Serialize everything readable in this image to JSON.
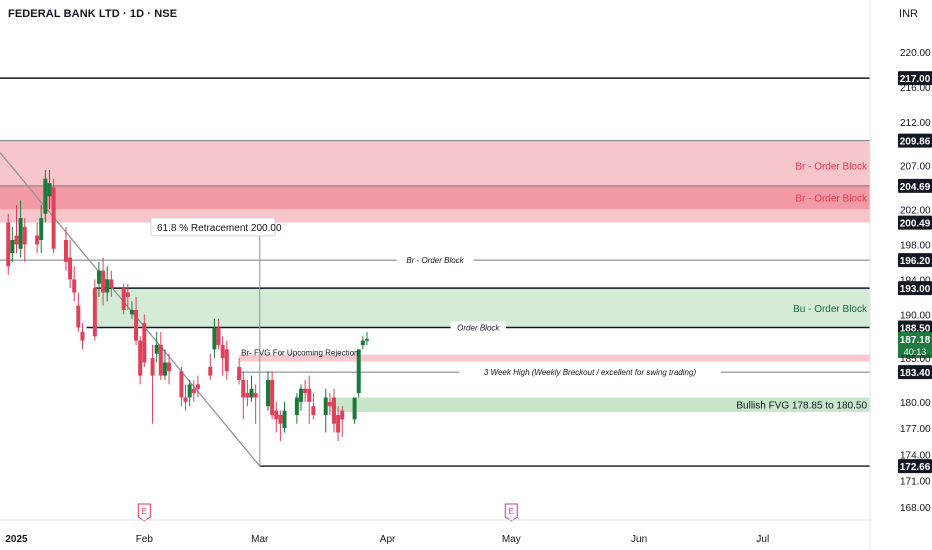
{
  "header": {
    "title": "FEDERAL BANK LTD · 1D · NSE",
    "currency": "INR"
  },
  "chart_data": {
    "type": "candlestick",
    "title": "FEDERAL BANK LTD · 1D · NSE",
    "currency": "INR",
    "ylim": [
      166.5,
      222.5
    ],
    "y_ticks": [
      "220.00",
      "216.00",
      "212.00",
      "207.00",
      "202.00",
      "198.00",
      "194.00",
      "190.00",
      "185.00",
      "180.00",
      "177.00",
      "174.00",
      "171.00",
      "168.00"
    ],
    "x_ticks": [
      "2025",
      "Feb",
      "Mar",
      "Apr",
      "May",
      "Jun",
      "Jul"
    ],
    "x_tick_dates": [
      "2025-01-01",
      "2025-02-01",
      "2025-03-01",
      "2025-04-01",
      "2025-05-01",
      "2025-06-01",
      "2025-07-01"
    ],
    "xlim": [
      "2024-12-28",
      "2025-07-27"
    ],
    "price_labels": [
      {
        "text": "217.00",
        "value": 217.0,
        "style": "black"
      },
      {
        "text": "209.86",
        "value": 209.86,
        "style": "black"
      },
      {
        "text": "204.69",
        "value": 204.69,
        "style": "black"
      },
      {
        "text": "200.49",
        "value": 200.49,
        "style": "black"
      },
      {
        "text": "196.20",
        "value": 196.2,
        "style": "black"
      },
      {
        "text": "193.00",
        "value": 193.0,
        "style": "black"
      },
      {
        "text": "188.50",
        "value": 188.5,
        "style": "black"
      },
      {
        "text": "187.18",
        "value": 187.18,
        "style": "green",
        "sub": "40:13"
      },
      {
        "text": "183.40",
        "value": 183.4,
        "style": "black"
      },
      {
        "text": "172.66",
        "value": 172.66,
        "style": "black"
      }
    ],
    "zones": [
      {
        "label": "Br - Order Block",
        "top": 209.86,
        "bottom": 200.49,
        "color": "#f7c6cb",
        "label_color": "#e53950"
      },
      {
        "label": "Br - Order Block",
        "top": 204.69,
        "bottom": 202.0,
        "color": "#f29ba7",
        "label_color": "#e53950"
      },
      {
        "label": "Bu - Order Block",
        "top": 193.0,
        "bottom": 188.5,
        "color": "#d4ecd6",
        "label_color": "#1a6b3a",
        "from": "2025-01-20"
      },
      {
        "label": "Br- FVG For Upcoming Rejection",
        "top": 185.4,
        "bottom": 184.6,
        "color": "#f8c9cf",
        "label_color": "#131722",
        "from": "2025-02-24"
      },
      {
        "label": "Bullish FVG 178.85 to 180.50",
        "top": 180.5,
        "bottom": 178.85,
        "color": "#c8e6c9",
        "label_color": "#131722",
        "from": "2025-03-18"
      }
    ],
    "hlines": [
      {
        "value": 217.0,
        "label": "",
        "style": "solid"
      },
      {
        "value": 209.86,
        "label": "",
        "style": "grey"
      },
      {
        "value": 204.69,
        "label": "",
        "style": "grey"
      },
      {
        "value": 196.2,
        "label": "Br - Order Block",
        "from": "2024-12-28"
      },
      {
        "value": 193.0,
        "label": "",
        "from": "2025-01-20",
        "style": "solid"
      },
      {
        "value": 188.5,
        "label": "Order Block",
        "from": "2025-01-18",
        "style": "solid"
      },
      {
        "value": 183.4,
        "label": "3 Week High (Weekly Breckout / excellent for swing trading)",
        "from": "2025-02-24"
      },
      {
        "value": 172.66,
        "label": "",
        "from": "2025-03-01",
        "style": "solid"
      }
    ],
    "annotation": {
      "text": "61.8 % Retracement  200.00",
      "value": 200.0
    },
    "events": [
      {
        "date": "2025-02-01",
        "mark": "E",
        "color": "#e53950"
      },
      {
        "date": "2025-05-01",
        "mark": "E",
        "color": "#c330c3"
      }
    ],
    "candles": [
      {
        "d": "2024-12-30",
        "o": 200.5,
        "h": 201.5,
        "c": 195.5,
        "l": 194.5
      },
      {
        "d": "2024-12-31",
        "o": 197.0,
        "h": 200.0,
        "c": 198.5,
        "l": 196.0
      },
      {
        "d": "2025-01-01",
        "o": 199.0,
        "h": 202.5,
        "c": 198.0,
        "l": 197.0
      },
      {
        "d": "2025-01-02",
        "o": 197.5,
        "h": 203.0,
        "c": 201.0,
        "l": 196.5
      },
      {
        "d": "2025-01-03",
        "o": 200.0,
        "h": 201.0,
        "c": 198.0,
        "l": 196.0
      },
      {
        "d": "2025-01-06",
        "o": 199.0,
        "h": 200.5,
        "c": 198.0,
        "l": 197.0
      },
      {
        "d": "2025-01-07",
        "o": 198.5,
        "h": 202.5,
        "c": 201.0,
        "l": 197.0
      },
      {
        "d": "2025-01-08",
        "o": 201.5,
        "h": 206.5,
        "c": 205.5,
        "l": 200.5
      },
      {
        "d": "2025-01-09",
        "o": 203.5,
        "h": 206.5,
        "c": 205.0,
        "l": 202.0
      },
      {
        "d": "2025-01-10",
        "o": 204.5,
        "h": 205.5,
        "c": 197.5,
        "l": 197.0
      },
      {
        "d": "2025-01-13",
        "o": 198.5,
        "h": 200.0,
        "c": 196.0,
        "l": 195.0
      },
      {
        "d": "2025-01-14",
        "o": 196.5,
        "h": 198.5,
        "c": 194.0,
        "l": 193.0
      },
      {
        "d": "2025-01-15",
        "o": 194.0,
        "h": 195.5,
        "c": 192.5,
        "l": 191.5
      },
      {
        "d": "2025-01-16",
        "o": 191.0,
        "h": 192.5,
        "c": 188.5,
        "l": 188.0
      },
      {
        "d": "2025-01-17",
        "o": 188.0,
        "h": 189.0,
        "c": 187.0,
        "l": 186.0
      },
      {
        "d": "2025-01-20",
        "o": 193.0,
        "h": 194.0,
        "c": 187.5,
        "l": 187.0
      },
      {
        "d": "2025-01-21",
        "o": 193.5,
        "h": 196.0,
        "c": 195.0,
        "l": 192.0
      },
      {
        "d": "2025-01-22",
        "o": 195.0,
        "h": 196.5,
        "c": 192.5,
        "l": 191.0
      },
      {
        "d": "2025-01-23",
        "o": 192.5,
        "h": 195.5,
        "c": 194.0,
        "l": 191.5
      },
      {
        "d": "2025-01-24",
        "o": 194.0,
        "h": 195.0,
        "c": 193.0,
        "l": 192.0
      },
      {
        "d": "2025-01-27",
        "o": 193.0,
        "h": 193.5,
        "c": 190.5,
        "l": 190.0
      },
      {
        "d": "2025-01-28",
        "o": 192.5,
        "h": 193.5,
        "c": 192.0,
        "l": 190.5
      },
      {
        "d": "2025-01-29",
        "o": 190.0,
        "h": 191.5,
        "c": 190.5,
        "l": 189.5
      },
      {
        "d": "2025-01-30",
        "o": 190.5,
        "h": 192.0,
        "c": 187.0,
        "l": 186.5
      },
      {
        "d": "2025-01-31",
        "o": 187.0,
        "h": 187.5,
        "c": 183.0,
        "l": 182.0
      },
      {
        "d": "2025-02-01",
        "o": 189.0,
        "h": 190.0,
        "c": 184.5,
        "l": 184.0
      },
      {
        "d": "2025-02-03",
        "o": 185.0,
        "h": 186.5,
        "c": 183.0,
        "l": 177.5
      },
      {
        "d": "2025-02-04",
        "o": 185.5,
        "h": 188.0,
        "c": 186.5,
        "l": 184.5
      },
      {
        "d": "2025-02-05",
        "o": 186.5,
        "h": 188.0,
        "c": 183.0,
        "l": 182.5
      },
      {
        "d": "2025-02-06",
        "o": 183.0,
        "h": 186.0,
        "c": 184.5,
        "l": 182.5
      },
      {
        "d": "2025-02-07",
        "o": 184.5,
        "h": 185.5,
        "c": 183.5,
        "l": 182.0
      },
      {
        "d": "2025-02-10",
        "o": 183.5,
        "h": 184.0,
        "c": 180.5,
        "l": 179.5
      },
      {
        "d": "2025-02-11",
        "o": 180.5,
        "h": 182.0,
        "c": 180.0,
        "l": 179.0
      },
      {
        "d": "2025-02-12",
        "o": 180.5,
        "h": 182.5,
        "c": 182.0,
        "l": 179.5
      },
      {
        "d": "2025-02-13",
        "o": 181.5,
        "h": 182.5,
        "c": 181.0,
        "l": 180.0
      },
      {
        "d": "2025-02-14",
        "o": 182.0,
        "h": 183.0,
        "c": 181.5,
        "l": 180.5
      },
      {
        "d": "2025-02-17",
        "o": 184.0,
        "h": 185.5,
        "c": 183.0,
        "l": 182.5
      },
      {
        "d": "2025-02-18",
        "o": 186.0,
        "h": 189.5,
        "c": 188.5,
        "l": 185.0
      },
      {
        "d": "2025-02-19",
        "o": 188.5,
        "h": 189.5,
        "c": 186.5,
        "l": 186.0
      },
      {
        "d": "2025-02-20",
        "o": 186.5,
        "h": 187.5,
        "c": 185.0,
        "l": 183.0
      },
      {
        "d": "2025-02-21",
        "o": 186.0,
        "h": 187.0,
        "c": 183.5,
        "l": 182.5
      },
      {
        "d": "2025-02-24",
        "o": 184.0,
        "h": 185.0,
        "c": 182.5,
        "l": 182.0
      },
      {
        "d": "2025-02-25",
        "o": 182.5,
        "h": 183.5,
        "c": 180.5,
        "l": 178.0
      },
      {
        "d": "2025-02-26",
        "o": 181.0,
        "h": 182.5,
        "c": 180.5,
        "l": 179.5
      },
      {
        "d": "2025-02-27",
        "o": 180.5,
        "h": 183.0,
        "c": 181.5,
        "l": 180.0
      },
      {
        "d": "2025-02-28",
        "o": 181.0,
        "h": 182.0,
        "c": 180.5,
        "l": 177.5
      },
      {
        "d": "2025-03-03",
        "o": 179.5,
        "h": 183.5,
        "c": 182.5,
        "l": 179.0
      },
      {
        "d": "2025-03-04",
        "o": 182.5,
        "h": 183.5,
        "c": 178.5,
        "l": 178.0
      },
      {
        "d": "2025-03-05",
        "o": 179.0,
        "h": 180.0,
        "c": 178.0,
        "l": 176.5
      },
      {
        "d": "2025-03-06",
        "o": 178.5,
        "h": 179.0,
        "c": 177.5,
        "l": 175.5
      },
      {
        "d": "2025-03-07",
        "o": 177.0,
        "h": 180.0,
        "c": 179.0,
        "l": 176.5
      },
      {
        "d": "2025-03-10",
        "o": 178.5,
        "h": 181.0,
        "c": 180.5,
        "l": 177.5
      },
      {
        "d": "2025-03-11",
        "o": 180.0,
        "h": 182.0,
        "c": 181.5,
        "l": 179.0
      },
      {
        "d": "2025-03-12",
        "o": 181.5,
        "h": 182.5,
        "c": 181.0,
        "l": 180.0
      },
      {
        "d": "2025-03-13",
        "o": 181.5,
        "h": 183.0,
        "c": 180.0,
        "l": 177.5
      },
      {
        "d": "2025-03-14",
        "o": 179.5,
        "h": 181.0,
        "c": 178.5,
        "l": 178.0
      },
      {
        "d": "2025-03-17",
        "o": 178.5,
        "h": 181.5,
        "c": 180.5,
        "l": 176.5
      },
      {
        "d": "2025-03-18",
        "o": 180.0,
        "h": 181.0,
        "c": 179.5,
        "l": 178.5
      },
      {
        "d": "2025-03-19",
        "o": 180.5,
        "h": 181.5,
        "c": 177.5,
        "l": 176.5
      },
      {
        "d": "2025-03-20",
        "o": 178.5,
        "h": 179.5,
        "c": 176.5,
        "l": 175.5
      },
      {
        "d": "2025-03-21",
        "o": 179.0,
        "h": 179.5,
        "c": 178.0,
        "l": 176.0
      },
      {
        "d": "2025-03-24",
        "o": 178.0,
        "h": 180.0,
        "c": 180.5,
        "l": 177.5
      },
      {
        "d": "2025-03-25",
        "o": 181.0,
        "h": 186.0,
        "c": 186.0,
        "l": 180.5
      },
      {
        "d": "2025-03-26",
        "o": 186.5,
        "h": 187.5,
        "c": 187.0,
        "l": 186.0
      },
      {
        "d": "2025-03-27",
        "o": 187.0,
        "h": 188.0,
        "c": 187.2,
        "l": 186.5
      }
    ]
  }
}
